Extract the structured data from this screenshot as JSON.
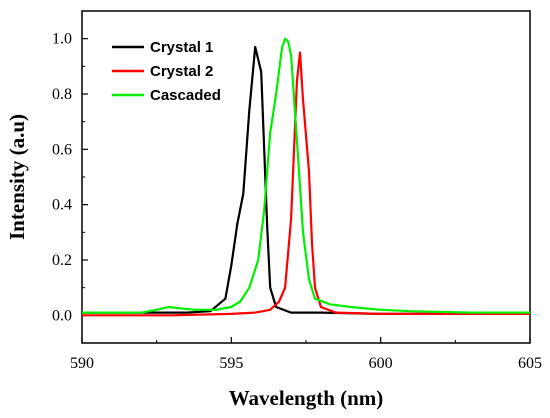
{
  "chart_data": {
    "type": "line",
    "xlabel": "Wavelength (nm)",
    "ylabel": "Intensity (a.u)",
    "xlim": [
      590,
      605
    ],
    "ylim": [
      -0.1,
      1.1
    ],
    "xticks": [
      590,
      595,
      600,
      605
    ],
    "yticks": [
      0.0,
      0.2,
      0.4,
      0.6,
      0.8,
      1.0
    ],
    "xtick_labels": [
      "590",
      "595",
      "600",
      "605"
    ],
    "ytick_labels": [
      "0.0",
      "0.2",
      "0.4",
      "0.6",
      "0.8",
      "1.0"
    ],
    "grid": false,
    "legend_position": "top-left",
    "series": [
      {
        "name": "Crystal 1",
        "color": "#000000",
        "points": [
          [
            590,
            0.01
          ],
          [
            592,
            0.01
          ],
          [
            593.5,
            0.01
          ],
          [
            594.3,
            0.015
          ],
          [
            594.8,
            0.06
          ],
          [
            595.0,
            0.18
          ],
          [
            595.2,
            0.33
          ],
          [
            595.4,
            0.44
          ],
          [
            595.6,
            0.74
          ],
          [
            595.8,
            0.97
          ],
          [
            596.0,
            0.88
          ],
          [
            596.1,
            0.6
          ],
          [
            596.2,
            0.32
          ],
          [
            596.3,
            0.1
          ],
          [
            596.5,
            0.03
          ],
          [
            597.0,
            0.01
          ],
          [
            598,
            0.01
          ],
          [
            600,
            0.005
          ],
          [
            605,
            0.005
          ]
        ]
      },
      {
        "name": "Crystal 2",
        "color": "#ff0000",
        "points": [
          [
            590,
            0.0
          ],
          [
            593,
            0.0
          ],
          [
            595,
            0.005
          ],
          [
            595.8,
            0.01
          ],
          [
            596.3,
            0.02
          ],
          [
            596.6,
            0.05
          ],
          [
            596.8,
            0.1
          ],
          [
            597.0,
            0.35
          ],
          [
            597.2,
            0.85
          ],
          [
            597.3,
            0.95
          ],
          [
            597.4,
            0.78
          ],
          [
            597.6,
            0.52
          ],
          [
            597.7,
            0.26
          ],
          [
            597.8,
            0.1
          ],
          [
            598.0,
            0.03
          ],
          [
            598.5,
            0.01
          ],
          [
            600,
            0.005
          ],
          [
            605,
            0.005
          ]
        ]
      },
      {
        "name": "Cascaded",
        "color": "#00ee00",
        "points": [
          [
            590,
            0.01
          ],
          [
            592.0,
            0.01
          ],
          [
            592.5,
            0.02
          ],
          [
            592.9,
            0.03
          ],
          [
            593.3,
            0.025
          ],
          [
            593.8,
            0.02
          ],
          [
            594.5,
            0.02
          ],
          [
            595.0,
            0.03
          ],
          [
            595.3,
            0.05
          ],
          [
            595.6,
            0.1
          ],
          [
            595.9,
            0.2
          ],
          [
            596.1,
            0.38
          ],
          [
            596.3,
            0.66
          ],
          [
            596.5,
            0.8
          ],
          [
            596.7,
            0.97
          ],
          [
            596.8,
            1.0
          ],
          [
            596.9,
            0.99
          ],
          [
            597.0,
            0.94
          ],
          [
            597.2,
            0.63
          ],
          [
            597.4,
            0.3
          ],
          [
            597.6,
            0.13
          ],
          [
            597.8,
            0.06
          ],
          [
            598.3,
            0.04
          ],
          [
            599,
            0.03
          ],
          [
            600,
            0.02
          ],
          [
            601,
            0.015
          ],
          [
            603,
            0.01
          ],
          [
            605,
            0.01
          ]
        ]
      }
    ]
  }
}
